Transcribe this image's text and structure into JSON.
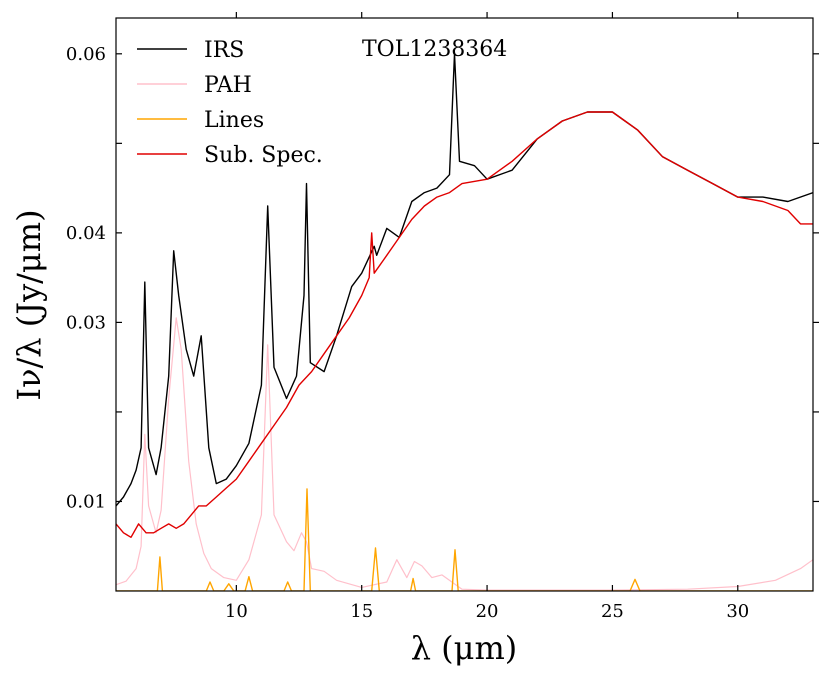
{
  "chart_data": {
    "type": "line",
    "annotation": "TOL1238364",
    "xlabel": "λ (μm)",
    "ylabel": "Iν/λ (Jy/μm)",
    "xlim": [
      5.2,
      33
    ],
    "ylim": [
      0,
      0.064
    ],
    "xticks": [
      10,
      15,
      20,
      25,
      30
    ],
    "yticks": [
      0.01,
      0.02,
      0.03,
      0.04,
      0.05,
      0.06
    ],
    "ytick_labels": [
      "0.01",
      "",
      "0.03",
      "0.04",
      "",
      "0.06"
    ],
    "legend_position": "top-left",
    "series": [
      {
        "name": "IRS",
        "color": "#000000",
        "x": [
          5.2,
          5.5,
          5.8,
          6.0,
          6.2,
          6.35,
          6.5,
          6.8,
          7.0,
          7.3,
          7.5,
          7.7,
          8.0,
          8.3,
          8.6,
          8.9,
          9.2,
          9.6,
          10.0,
          10.5,
          11.0,
          11.25,
          11.5,
          12.0,
          12.4,
          12.7,
          12.8,
          12.95,
          13.5,
          14.0,
          14.6,
          15.0,
          15.5,
          15.6,
          16.0,
          16.5,
          17.0,
          17.5,
          18.0,
          18.5,
          18.7,
          18.9,
          19.5,
          20.0,
          21.0,
          22.0,
          23.0,
          24.0,
          25.0,
          25.5,
          26.0,
          27.0,
          28.0,
          29.0,
          30.0,
          31.0,
          32.0,
          33.0
        ],
        "y": [
          0.0095,
          0.0105,
          0.012,
          0.0135,
          0.016,
          0.0345,
          0.016,
          0.013,
          0.016,
          0.024,
          0.038,
          0.033,
          0.027,
          0.024,
          0.0285,
          0.016,
          0.012,
          0.0125,
          0.014,
          0.0165,
          0.023,
          0.043,
          0.025,
          0.0215,
          0.024,
          0.033,
          0.0455,
          0.0255,
          0.0245,
          0.0285,
          0.034,
          0.0355,
          0.0385,
          0.0375,
          0.0405,
          0.0395,
          0.0435,
          0.0445,
          0.045,
          0.0465,
          0.06,
          0.048,
          0.0475,
          0.046,
          0.047,
          0.0505,
          0.0525,
          0.0535,
          0.0535,
          0.0525,
          0.0515,
          0.0485,
          0.047,
          0.0455,
          0.044,
          0.044,
          0.0435,
          0.0445
        ]
      },
      {
        "name": "PAH",
        "color": "#ffc0cb",
        "x": [
          5.2,
          5.6,
          6.0,
          6.2,
          6.35,
          6.5,
          6.8,
          7.0,
          7.3,
          7.6,
          7.8,
          8.1,
          8.4,
          8.7,
          9.0,
          9.5,
          10.0,
          10.5,
          11.0,
          11.25,
          11.5,
          12.0,
          12.3,
          12.6,
          12.8,
          13.0,
          13.5,
          14.0,
          15.0,
          16.0,
          16.4,
          16.8,
          17.1,
          17.4,
          17.8,
          18.2,
          19.0,
          20.0,
          25.0,
          28.0,
          30.0,
          31.5,
          32.5,
          33.0
        ],
        "y": [
          0.0007,
          0.0011,
          0.0025,
          0.005,
          0.0175,
          0.0095,
          0.0065,
          0.009,
          0.0215,
          0.0305,
          0.027,
          0.0145,
          0.0075,
          0.0042,
          0.0025,
          0.0015,
          0.0012,
          0.0035,
          0.0085,
          0.0275,
          0.0085,
          0.0055,
          0.0045,
          0.0065,
          0.0055,
          0.0025,
          0.0022,
          0.0012,
          0.0004,
          0.001,
          0.0035,
          0.0015,
          0.0033,
          0.0028,
          0.0015,
          0.0018,
          0.0002,
          0.0001,
          0.0001,
          0.0002,
          0.0005,
          0.0012,
          0.0025,
          0.0035
        ]
      },
      {
        "name": "Lines",
        "color": "#ffa500",
        "x": [
          5.2,
          6.85,
          6.95,
          7.05,
          7.2,
          8.8,
          8.95,
          9.1,
          9.5,
          9.7,
          9.9,
          10.35,
          10.5,
          10.65,
          11.9,
          12.05,
          12.2,
          12.7,
          12.82,
          12.95,
          14.0,
          15.4,
          15.55,
          15.7,
          16.95,
          17.05,
          17.15,
          18.6,
          18.72,
          18.85,
          20.0,
          25.7,
          25.9,
          26.1,
          33.0
        ],
        "y": [
          0,
          0,
          0.0038,
          0,
          0,
          0,
          0.001,
          0,
          0,
          0.0008,
          0,
          0,
          0.0016,
          0,
          0,
          0.001,
          0,
          0,
          0.0114,
          0,
          0,
          0,
          0.0048,
          0,
          0,
          0.0014,
          0,
          0,
          0.0046,
          0,
          0,
          0,
          0.0013,
          0,
          0
        ]
      },
      {
        "name": "Sub. Spec.",
        "color": "#e00000",
        "x": [
          5.2,
          5.5,
          5.8,
          6.1,
          6.4,
          6.7,
          7.0,
          7.3,
          7.6,
          7.9,
          8.2,
          8.5,
          8.8,
          9.2,
          9.6,
          10.0,
          10.5,
          11.0,
          11.5,
          12.0,
          12.5,
          13.0,
          13.5,
          14.0,
          14.5,
          15.0,
          15.3,
          15.4,
          15.5,
          16.0,
          16.5,
          17.0,
          17.5,
          18.0,
          18.5,
          19.0,
          20.0,
          21.0,
          22.0,
          23.0,
          24.0,
          25.0,
          25.5,
          26.0,
          27.0,
          28.0,
          29.0,
          30.0,
          31.0,
          32.0,
          32.5,
          33.0
        ],
        "y": [
          0.0075,
          0.0065,
          0.006,
          0.0075,
          0.0065,
          0.0065,
          0.007,
          0.0075,
          0.007,
          0.0075,
          0.0085,
          0.0095,
          0.0095,
          0.0105,
          0.0115,
          0.0125,
          0.0145,
          0.0165,
          0.0185,
          0.0205,
          0.023,
          0.0245,
          0.0265,
          0.0285,
          0.0305,
          0.033,
          0.035,
          0.04,
          0.0355,
          0.0375,
          0.0395,
          0.0415,
          0.043,
          0.044,
          0.0445,
          0.0455,
          0.046,
          0.048,
          0.0505,
          0.0525,
          0.0535,
          0.0535,
          0.0525,
          0.0515,
          0.0485,
          0.047,
          0.0455,
          0.044,
          0.0435,
          0.0425,
          0.041,
          0.041
        ]
      }
    ]
  }
}
